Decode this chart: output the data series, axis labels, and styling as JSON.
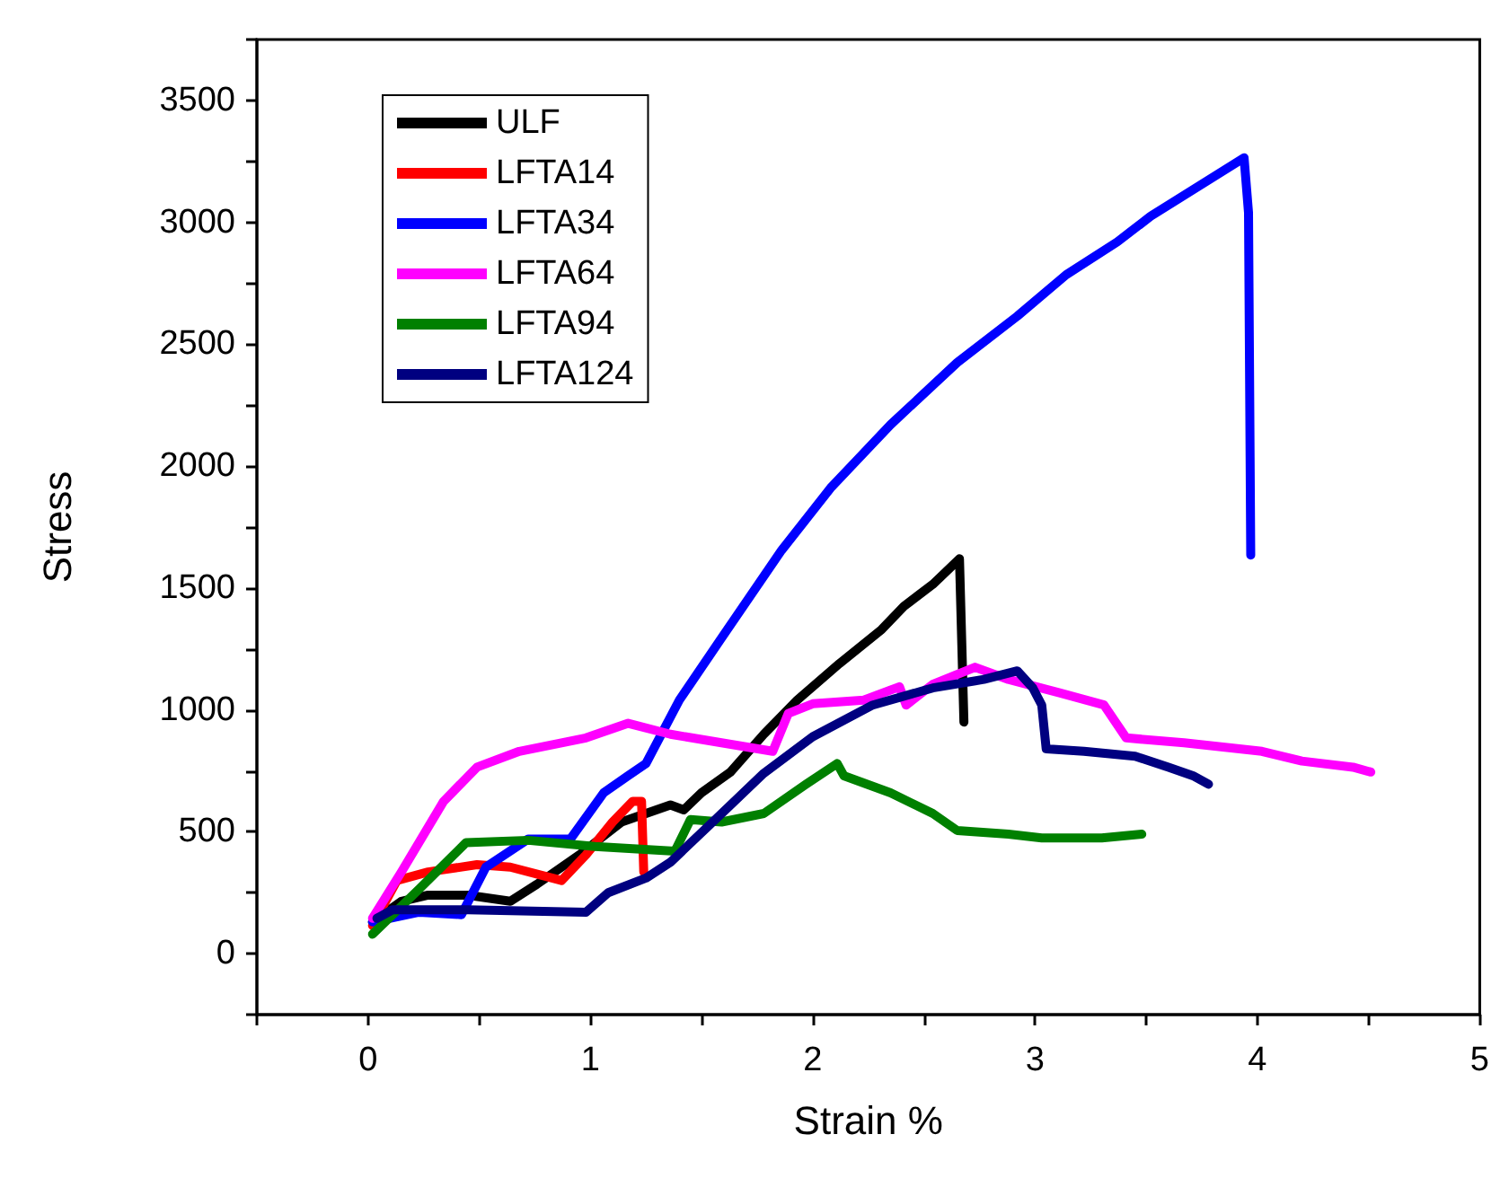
{
  "chart_data": {
    "type": "line",
    "xlabel": "Strain %",
    "ylabel": "Stress",
    "xlim": [
      -0.5,
      5
    ],
    "xticks": [
      0,
      1,
      2,
      3,
      4,
      5
    ],
    "ylim": [
      -250,
      3750
    ],
    "yticks": [
      0,
      500,
      1000,
      1500,
      2000,
      2500,
      3000,
      3500
    ],
    "grid": false,
    "legend": "top left",
    "marker": "none",
    "line_style": "solid",
    "series": [
      {
        "name": "ULF",
        "color": "#000000",
        "x": [
          0.02,
          0.15,
          0.27,
          0.45,
          0.64,
          0.76,
          0.95,
          1.14,
          1.36,
          1.42,
          1.5,
          1.63,
          1.78,
          1.93,
          2.12,
          2.31,
          2.41,
          2.54,
          2.66,
          2.68
        ],
        "values": [
          130,
          215,
          240,
          240,
          215,
          285,
          405,
          540,
          610,
          590,
          660,
          745,
          900,
          1040,
          1190,
          1330,
          1425,
          1515,
          1620,
          950
        ]
      },
      {
        "name": "LFTA14",
        "color": "#ff0000",
        "x": [
          0.02,
          0.13,
          0.27,
          0.49,
          0.64,
          0.87,
          0.98,
          1.1,
          1.19,
          1.23,
          1.24
        ],
        "values": [
          115,
          300,
          335,
          365,
          355,
          300,
          405,
          540,
          625,
          625,
          335
        ]
      },
      {
        "name": "LFTA34",
        "color": "#0000ff",
        "x": [
          0.02,
          0.23,
          0.42,
          0.53,
          0.72,
          0.91,
          1.06,
          1.17,
          1.25,
          1.4,
          1.59,
          1.86,
          2.08,
          2.35,
          2.65,
          2.92,
          3.14,
          3.37,
          3.52,
          3.73,
          3.94,
          3.96,
          3.97
        ],
        "values": [
          130,
          170,
          160,
          355,
          470,
          470,
          660,
          730,
          780,
          1040,
          1295,
          1655,
          1910,
          2170,
          2425,
          2615,
          2785,
          2920,
          3025,
          3145,
          3265,
          3040,
          1635
        ]
      },
      {
        "name": "LFTA64",
        "color": "#ff00ff",
        "x": [
          0.02,
          0.15,
          0.34,
          0.49,
          0.68,
          0.98,
          1.17,
          1.36,
          1.82,
          1.89,
          2.0,
          2.23,
          2.39,
          2.42,
          2.54,
          2.73,
          2.88,
          3.11,
          3.31,
          3.41,
          3.67,
          4.02,
          4.2,
          4.43,
          4.51
        ],
        "values": [
          145,
          335,
          625,
          765,
          830,
          885,
          945,
          900,
          830,
          985,
          1025,
          1040,
          1095,
          1020,
          1105,
          1175,
          1125,
          1070,
          1020,
          885,
          865,
          830,
          790,
          765,
          745
        ]
      },
      {
        "name": "LFTA94",
        "color": "#008000",
        "x": [
          0.02,
          0.23,
          0.44,
          0.72,
          1.02,
          1.38,
          1.45,
          1.59,
          1.78,
          1.97,
          2.11,
          2.14,
          2.35,
          2.54,
          2.65,
          2.88,
          3.03,
          3.3,
          3.48
        ],
        "values": [
          80,
          265,
          455,
          465,
          440,
          420,
          550,
          540,
          575,
          695,
          780,
          730,
          660,
          575,
          505,
          490,
          475,
          475,
          490
        ]
      },
      {
        "name": "LFTA124",
        "color": "#000080",
        "x": [
          0.04,
          0.11,
          0.45,
          0.98,
          1.08,
          1.25,
          1.36,
          1.59,
          1.78,
          2.0,
          2.27,
          2.54,
          2.77,
          2.92,
          2.99,
          3.03,
          3.05,
          3.22,
          3.45,
          3.6,
          3.71,
          3.78
        ],
        "values": [
          145,
          180,
          180,
          170,
          250,
          310,
          375,
          575,
          740,
          890,
          1020,
          1090,
          1125,
          1160,
          1090,
          1020,
          840,
          830,
          810,
          765,
          730,
          695
        ]
      }
    ]
  }
}
